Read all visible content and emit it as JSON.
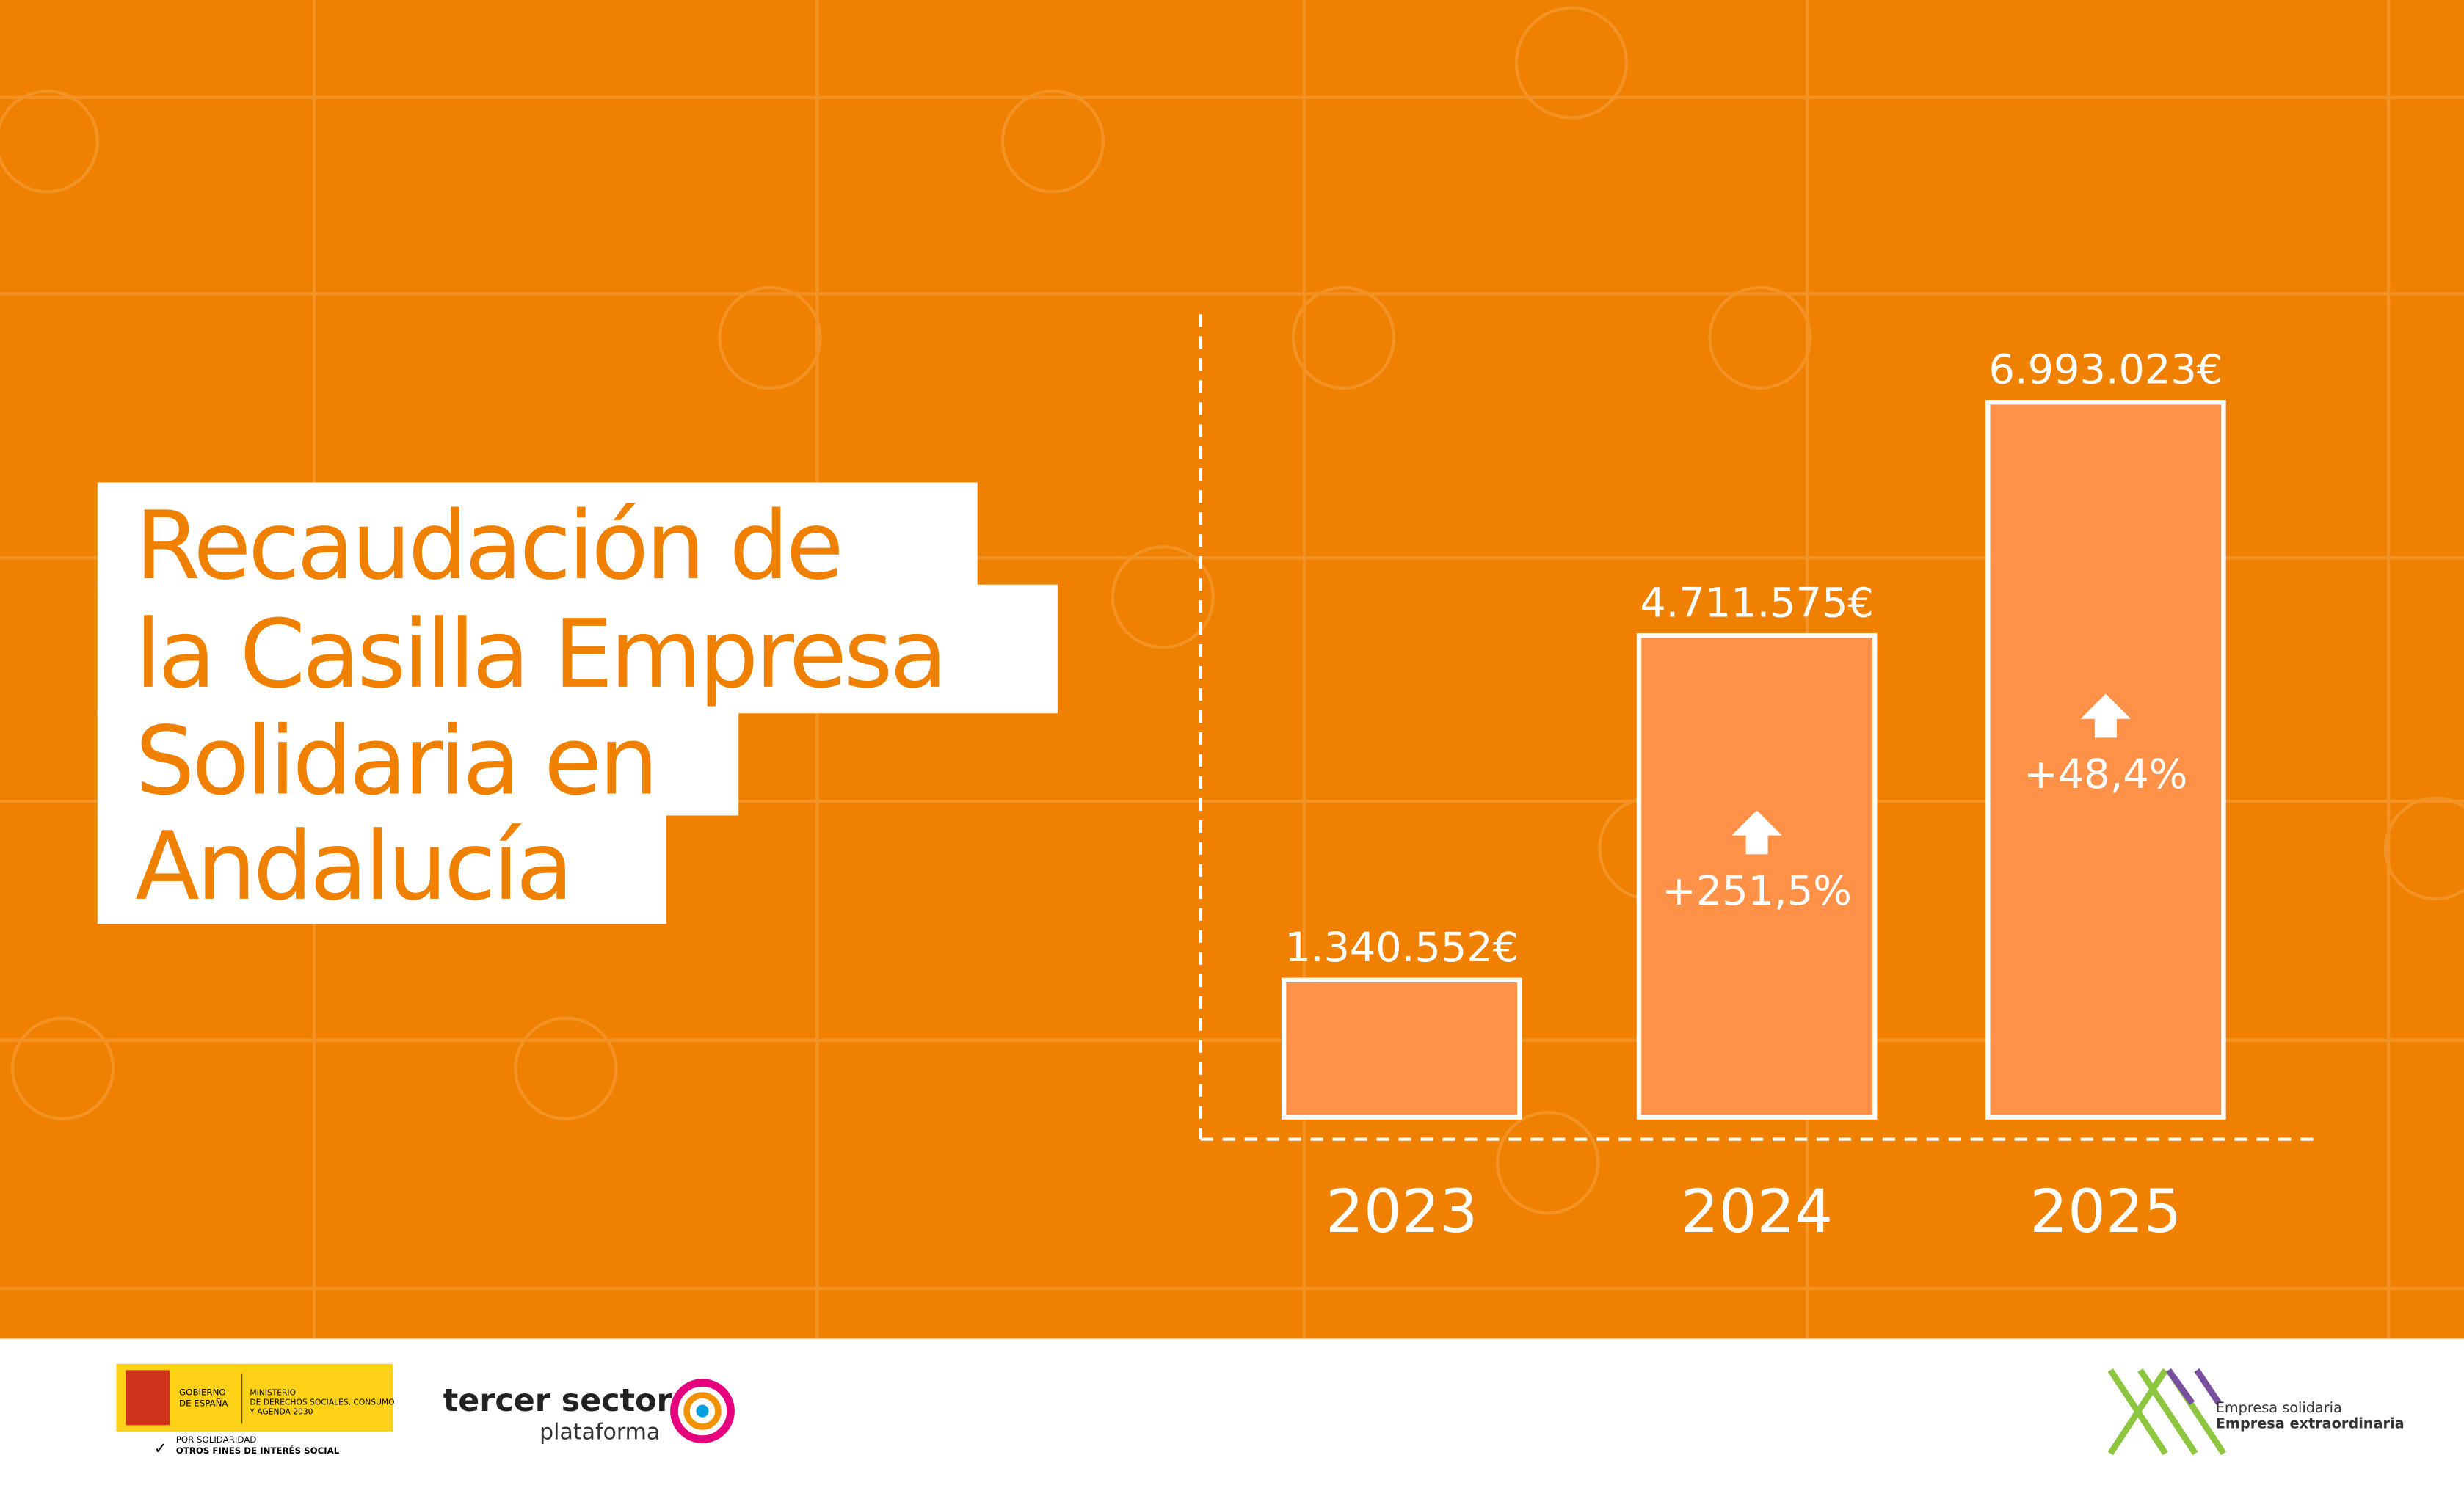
{
  "chart_data": {
    "type": "bar",
    "title": [
      "Recaudación de",
      "la Casilla Empresa",
      "Solidaria en",
      "Andalucía"
    ],
    "categories": [
      "2023",
      "2024",
      "2025"
    ],
    "values": [
      1340552,
      4711575,
      6993023
    ],
    "value_labels": [
      "1.340.552€",
      "4.711.575€",
      "6.993.023€"
    ],
    "change_labels": [
      null,
      "+251,5%",
      "+48,4%"
    ],
    "color": "#ff9148"
  },
  "footer": {
    "gov_line1": "GOBIERNO",
    "gov_line2": "DE ESPAÑA",
    "ministry": [
      "MINISTERIO",
      "DE DERECHOS SOCIALES, CONSUMO",
      "Y AGENDA 2030"
    ],
    "tag1": "POR SOLIDARIDAD",
    "tag2": "OTROS FINES DE INTERÉS SOCIAL",
    "tercer": "tercer sector",
    "plataforma": "plataforma",
    "brand1": "Empresa solidaria",
    "brand2": "Empresa extraordinaria"
  }
}
